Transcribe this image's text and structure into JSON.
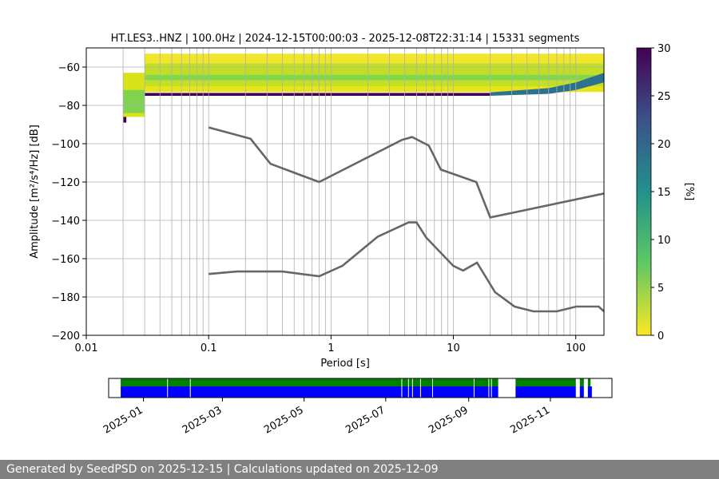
{
  "footer": {
    "text": "Generated by SeedPSD on 2025-12-15 | Calculations updated on 2025-12-09"
  },
  "chart_data": {
    "type": "heatmap",
    "title": "HT.LES3..HNZ | 100.0Hz | 2024-12-15T00:00:03 - 2025-12-08T22:31:14 | 15331 segments",
    "xlabel": "Period [s]",
    "ylabel": "Amplitude [m²/s⁴/Hz] [dB]",
    "xscale": "log",
    "xlim": [
      0.01,
      170
    ],
    "ylim": [
      -200,
      -50
    ],
    "x_ticks": [
      0.01,
      0.1,
      1,
      10,
      100
    ],
    "x_tick_labels": [
      "0.01",
      "0.1",
      "1",
      "10",
      "100"
    ],
    "y_ticks": [
      -200,
      -180,
      -160,
      -140,
      -120,
      -100,
      -80,
      -60
    ],
    "grid": true,
    "colorbar": {
      "label": "[%]",
      "range": [
        0,
        30
      ],
      "ticks": [
        0,
        5,
        10,
        15,
        20,
        25,
        30
      ],
      "colormap": "viridis_r"
    },
    "psd_bands": {
      "x_start": 0.02,
      "x_end": 170,
      "top_y": -53,
      "bottom_y": -75,
      "mode_y": -67
    },
    "noise_models": [
      {
        "name": "high",
        "x": [
          0.1,
          0.22,
          0.32,
          0.8,
          3.8,
          4.6,
          6.3,
          7.9,
          15.4,
          20,
          354.8
        ],
        "y": [
          -91.5,
          -97.4,
          -110.5,
          -120,
          -98,
          -96.5,
          -101,
          -113.5,
          -120,
          -138.5,
          -126
        ]
      },
      {
        "name": "low",
        "x": [
          0.1,
          0.17,
          0.4,
          0.8,
          1.24,
          2.4,
          4.3,
          5.0,
          6.0,
          10,
          12,
          15.6,
          21.9,
          31.6,
          45,
          70,
          101,
          154,
          328
        ],
        "y": [
          -168,
          -166.7,
          -166.7,
          -169.2,
          -163.7,
          -148.6,
          -141.1,
          -141.1,
          -149,
          -163.8,
          -166.2,
          -162.1,
          -177.5,
          -185,
          -187.5,
          -187.5,
          -185,
          -185,
          -187.5
        ]
      }
    ],
    "availability": {
      "x_tick_labels": [
        "2025-01",
        "2025-03",
        "2025-05",
        "2025-07",
        "2025-09",
        "2025-11"
      ],
      "x_ticks": [
        "2025-01-01",
        "2025-03-01",
        "2025-05-01",
        "2025-07-01",
        "2025-09-01",
        "2025-11-01"
      ],
      "xlim": [
        "2024-12-06",
        "2025-12-17"
      ],
      "green_segments": [
        [
          "2024-12-15",
          "2025-09-23"
        ],
        [
          "2025-10-06",
          "2025-11-20"
        ],
        [
          "2025-11-23",
          "2025-11-26"
        ],
        [
          "2025-11-29",
          "2025-12-01"
        ]
      ],
      "blue_segments": [
        [
          "2024-12-15",
          "2025-09-23"
        ],
        [
          "2025-10-06",
          "2025-11-20"
        ],
        [
          "2025-11-23",
          "2025-11-26"
        ],
        [
          "2025-11-29",
          "2025-12-02"
        ]
      ],
      "gap_lines": [
        "2025-01-19",
        "2025-02-05",
        "2025-07-13",
        "2025-07-18",
        "2025-07-21",
        "2025-07-27",
        "2025-08-05",
        "2025-09-05",
        "2025-09-16",
        "2025-09-18"
      ]
    }
  }
}
